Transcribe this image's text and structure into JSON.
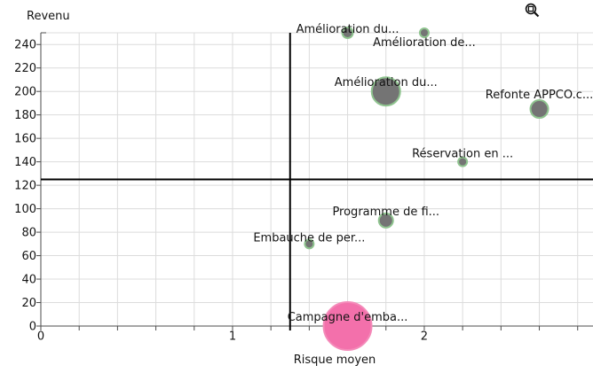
{
  "toolbar": {
    "zoom_icon": "magnifier-zoom"
  },
  "chart_data": {
    "type": "scatter",
    "subtype": "bubble",
    "title": "",
    "xlabel": "Risque moyen",
    "ylabel": "Revenu",
    "xlim": [
      0,
      2.88
    ],
    "ylim": [
      0,
      250
    ],
    "x_tick_values": [
      0,
      1,
      2
    ],
    "x_tick_labels": [
      "0",
      "1",
      "2"
    ],
    "x_minor_grid_step": 0.2,
    "y_tick_values": [
      0,
      20,
      40,
      60,
      80,
      100,
      120,
      140,
      160,
      180,
      200,
      220,
      240
    ],
    "y_tick_labels": [
      "0",
      "20",
      "40",
      "60",
      "80",
      "100",
      "120",
      "140",
      "160",
      "180",
      "200",
      "220",
      "240"
    ],
    "grid": true,
    "legend": "none",
    "colors": {
      "grid": "#dcdcdc",
      "axis": "#4d4d4d",
      "quadrant_line": "#000000",
      "text": "#141414",
      "bubble_fill": "#747474",
      "bubble_stroke": "#8fc48f",
      "highlight_fill": "#f370ab",
      "highlight_stroke": "#f48ab9"
    },
    "quadrant_divider": {
      "x": 1.3,
      "y": 125
    },
    "points": [
      {
        "label": "Amélioration du...",
        "x": 1.6,
        "y": 250,
        "r": 6,
        "fill": "#747474",
        "stroke": "#8fc48f",
        "label_dy": 0
      },
      {
        "label": "Amélioration de...",
        "x": 2.0,
        "y": 250,
        "r": 5,
        "fill": "#747474",
        "stroke": "#8fc48f",
        "label_dy": 15
      },
      {
        "label": "Amélioration du...",
        "x": 1.8,
        "y": 200,
        "r": 16,
        "fill": "#747474",
        "stroke": "#8fc48f",
        "label_dy": -6
      },
      {
        "label": "Refonte APPCO.c...",
        "x": 2.6,
        "y": 185,
        "r": 10,
        "fill": "#747474",
        "stroke": "#8fc48f",
        "label_dy": -12
      },
      {
        "label": "Réservation en ...",
        "x": 2.2,
        "y": 140,
        "r": 5,
        "fill": "#747474",
        "stroke": "#8fc48f",
        "label_dy": -5
      },
      {
        "label": "Programme de fi...",
        "x": 1.8,
        "y": 90,
        "r": 8,
        "fill": "#747474",
        "stroke": "#8fc48f",
        "label_dy": -6
      },
      {
        "label": "Embauche de per...",
        "x": 1.4,
        "y": 70,
        "r": 5,
        "fill": "#747474",
        "stroke": "#8fc48f",
        "label_dy": -3
      },
      {
        "label": "Campagne d'emba...",
        "x": 1.6,
        "y": 0,
        "r": 27,
        "fill": "#f370ab",
        "stroke": "#f48ab9",
        "label_dy": -6
      }
    ]
  }
}
